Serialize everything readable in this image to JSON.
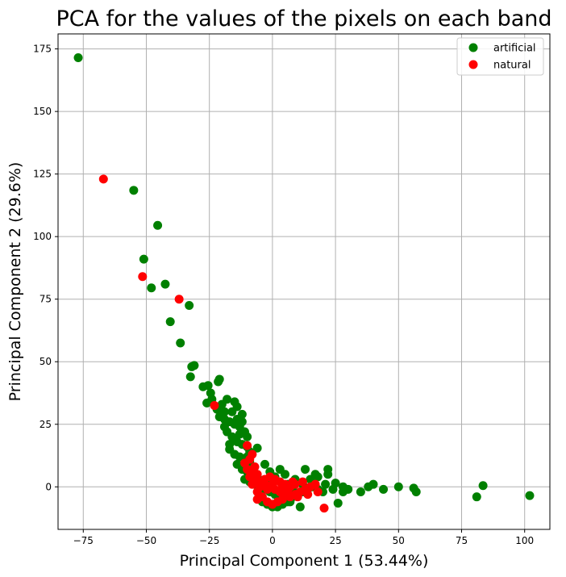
{
  "chart_data": {
    "type": "scatter",
    "title": "PCA for the values of the pixels on each band",
    "xlabel": "Principal Component 1 (53.44%)",
    "ylabel": "Principal Component 2 (29.6%)",
    "xlim": [
      -85,
      110
    ],
    "ylim": [
      -17,
      181
    ],
    "xticks": [
      -75,
      -50,
      -25,
      0,
      25,
      50,
      75,
      100
    ],
    "xtick_labels": [
      "−75",
      "−50",
      "−25",
      "0",
      "25",
      "50",
      "75",
      "100"
    ],
    "yticks": [
      0,
      25,
      50,
      75,
      100,
      125,
      150,
      175
    ],
    "ytick_labels": [
      "0",
      "25",
      "50",
      "75",
      "100",
      "125",
      "150",
      "175"
    ],
    "grid": true,
    "legend_position": "top-right",
    "series": [
      {
        "name": "artificial",
        "color": "#008000",
        "points": [
          [
            -77,
            171.5
          ],
          [
            -55,
            118.5
          ],
          [
            -45.5,
            104.5
          ],
          [
            -51,
            91
          ],
          [
            -42.5,
            81
          ],
          [
            -48,
            79.5
          ],
          [
            -33,
            72.5
          ],
          [
            -40.5,
            66
          ],
          [
            -36.5,
            57.5
          ],
          [
            -31,
            48.5
          ],
          [
            -32,
            48
          ],
          [
            -32.5,
            44
          ],
          [
            -27.5,
            40
          ],
          [
            -25.5,
            40.5
          ],
          [
            -24.5,
            37.5
          ],
          [
            -21.5,
            42
          ],
          [
            -21,
            43
          ],
          [
            -26,
            33.5
          ],
          [
            -24,
            35
          ],
          [
            -22,
            31
          ],
          [
            -20,
            33
          ],
          [
            -18,
            35
          ],
          [
            -15,
            34
          ],
          [
            -16,
            30
          ],
          [
            -14,
            32
          ],
          [
            -12,
            29
          ],
          [
            -21,
            28
          ],
          [
            -19,
            27
          ],
          [
            -17,
            26
          ],
          [
            -15,
            25
          ],
          [
            -13,
            24
          ],
          [
            -11,
            22
          ],
          [
            -18,
            22
          ],
          [
            -16,
            20
          ],
          [
            -14,
            18
          ],
          [
            -12,
            17
          ],
          [
            -10,
            16
          ],
          [
            -17,
            15
          ],
          [
            -15,
            13
          ],
          [
            -13,
            12
          ],
          [
            -11,
            11
          ],
          [
            -9,
            10
          ],
          [
            -6,
            15.5
          ],
          [
            -14,
            9
          ],
          [
            -12,
            7
          ],
          [
            -10,
            6
          ],
          [
            -8,
            5
          ],
          [
            -6,
            4
          ],
          [
            -11,
            3
          ],
          [
            -9,
            2
          ],
          [
            -7,
            1
          ],
          [
            -5,
            0
          ],
          [
            -3,
            -1
          ],
          [
            -1,
            -2
          ],
          [
            1,
            -3
          ],
          [
            3,
            -4
          ],
          [
            5,
            -5
          ],
          [
            7,
            -6
          ],
          [
            -4,
            -6
          ],
          [
            -2,
            -7
          ],
          [
            0,
            -8
          ],
          [
            2,
            -8
          ],
          [
            4,
            -7
          ],
          [
            6,
            -6
          ],
          [
            8,
            -4
          ],
          [
            10,
            -3
          ],
          [
            12,
            -2
          ],
          [
            14,
            -1
          ],
          [
            16,
            0
          ],
          [
            18,
            -1
          ],
          [
            20,
            -2
          ],
          [
            12,
            1
          ],
          [
            13,
            7
          ],
          [
            17,
            5
          ],
          [
            18,
            4
          ],
          [
            22,
            7
          ],
          [
            22,
            5
          ],
          [
            25,
            1.5
          ],
          [
            28,
            0
          ],
          [
            30,
            -1
          ],
          [
            28,
            -2
          ],
          [
            26,
            -6.5
          ],
          [
            35,
            -2
          ],
          [
            38,
            0
          ],
          [
            40,
            1
          ],
          [
            44,
            -1
          ],
          [
            50,
            0
          ],
          [
            56,
            -0.5
          ],
          [
            57,
            -2
          ],
          [
            81,
            -4
          ],
          [
            83.5,
            0.5
          ],
          [
            102,
            -3.5
          ],
          [
            3,
            7
          ],
          [
            5,
            5
          ],
          [
            -1,
            6
          ],
          [
            9,
            3
          ],
          [
            11,
            -8
          ],
          [
            -13,
            21
          ],
          [
            -15,
            19
          ],
          [
            -17,
            17
          ],
          [
            -19,
            24
          ],
          [
            -8,
            8
          ],
          [
            -10,
            12
          ],
          [
            -14,
            27
          ],
          [
            -19,
            30
          ],
          [
            -12,
            26
          ],
          [
            -10,
            20
          ],
          [
            -9,
            14
          ],
          [
            -3,
            9
          ],
          [
            1,
            4
          ],
          [
            6,
            1
          ],
          [
            -2,
            2
          ],
          [
            15,
            3
          ],
          [
            21,
            1
          ],
          [
            24,
            -1
          ],
          [
            8,
            -1
          ]
        ]
      },
      {
        "name": "natural",
        "color": "#ff0000",
        "points": [
          [
            -67,
            123
          ],
          [
            -51.5,
            84
          ],
          [
            -37,
            75
          ],
          [
            -23,
            32.5
          ],
          [
            20.5,
            -8.5
          ],
          [
            -10,
            16.5
          ],
          [
            -8,
            13
          ],
          [
            -9,
            11
          ],
          [
            -11,
            9.5
          ],
          [
            -7,
            8
          ],
          [
            -10,
            7
          ],
          [
            -8,
            6
          ],
          [
            -6,
            5
          ],
          [
            -9,
            4
          ],
          [
            -7,
            3
          ],
          [
            -5,
            2
          ],
          [
            -3,
            1
          ],
          [
            -1,
            0
          ],
          [
            1,
            -1
          ],
          [
            3,
            -2
          ],
          [
            5,
            -3
          ],
          [
            7,
            -4
          ],
          [
            9,
            -3
          ],
          [
            11,
            -2
          ],
          [
            13,
            -1
          ],
          [
            15,
            0
          ],
          [
            17,
            1
          ],
          [
            18,
            -2
          ],
          [
            -6,
            -2
          ],
          [
            -4,
            -4
          ],
          [
            -2,
            -6
          ],
          [
            0,
            -7
          ],
          [
            2,
            -6
          ],
          [
            4,
            -5
          ],
          [
            -5,
            0
          ],
          [
            -3,
            3
          ],
          [
            -1,
            4
          ],
          [
            1,
            3
          ],
          [
            3,
            2
          ],
          [
            5,
            1
          ],
          [
            7,
            0
          ],
          [
            9,
            1
          ],
          [
            -8,
            1
          ],
          [
            -6,
            -5
          ],
          [
            6,
            -2
          ],
          [
            10,
            -4
          ],
          [
            12,
            2
          ],
          [
            0,
            1
          ],
          [
            -2,
            -1
          ],
          [
            4,
            0
          ],
          [
            14,
            -3
          ],
          [
            8,
            2
          ]
        ]
      }
    ]
  }
}
